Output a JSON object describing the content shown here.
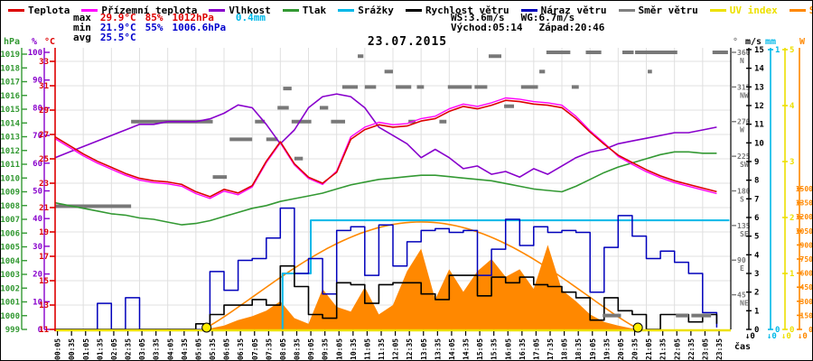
{
  "title": "23.07.2015",
  "legend": {
    "items": [
      {
        "label": "Teplota",
        "color": "#dd0000",
        "text_color": "#000000"
      },
      {
        "label": "Přízemní teplota",
        "color": "#ff00ff",
        "text_color": "#000000"
      },
      {
        "label": "Vlhkost",
        "color": "#8800cc",
        "text_color": "#000000"
      },
      {
        "label": "Tlak",
        "color": "#339933",
        "text_color": "#000000"
      },
      {
        "label": "Srážky",
        "color": "#00b8e8",
        "text_color": "#000000"
      },
      {
        "label": "Rychlost větru",
        "color": "#000000",
        "text_color": "#000000"
      },
      {
        "label": "Náraz větru",
        "color": "#0000bb",
        "text_color": "#000000"
      },
      {
        "label": "Směr větru",
        "color": "#808080",
        "text_color": "#000000"
      },
      {
        "label": "UV index",
        "color": "#ede000",
        "text_color": "#ede000"
      },
      {
        "label": "Solar",
        "color": "#ff8800",
        "text_color": "#ff8800"
      }
    ]
  },
  "stats": {
    "max_label": "max",
    "max_temp": "29.9°C",
    "max_hum": "85%",
    "max_press": "1012hPa",
    "rain": "0.4mm",
    "min_label": "min",
    "min_temp": "21.9°C",
    "min_hum": "55%",
    "min_press": "1006.6hPa",
    "avg_label": "avg",
    "avg_temp": "25.5°C",
    "ws": "WS:3.6m/s",
    "wg": "WG:6.7m/s",
    "sunrise": "Východ:05:14",
    "sunset": "Západ:20:46",
    "max_color": "#dd0000",
    "min_color": "#0000cc",
    "rain_color": "#00b8e8"
  },
  "footer": {
    "xlabel": "čas"
  },
  "chart_data": {
    "type": "line",
    "title": "23.07.2015",
    "x_unit": "hours",
    "x_range": [
      0,
      24
    ],
    "time_tick_labels": [
      "00:05",
      "00:35",
      "01:05",
      "01:35",
      "02:05",
      "02:35",
      "03:05",
      "03:35",
      "04:05",
      "04:35",
      "05:05",
      "05:35",
      "06:05",
      "06:35",
      "07:05",
      "07:35",
      "08:05",
      "08:35",
      "09:05",
      "09:35",
      "10:05",
      "10:35",
      "11:05",
      "11:35",
      "12:05",
      "12:35",
      "13:05",
      "13:35",
      "14:05",
      "14:35",
      "15:05",
      "15:35",
      "16:05",
      "16:35",
      "17:05",
      "17:35",
      "18:05",
      "18:35",
      "19:05",
      "19:35",
      "20:05",
      "20:35",
      "21:05",
      "21:35",
      "22:05",
      "22:35",
      "23:05",
      "23:35"
    ],
    "sample_step_h": 0.5,
    "series": [
      {
        "name": "Teplota",
        "unit": "°C",
        "axis": "temp",
        "color": "#dd0000",
        "values": [
          26.8,
          26.1,
          25.4,
          24.8,
          24.3,
          23.8,
          23.4,
          23.2,
          23.1,
          22.9,
          22.3,
          21.9,
          22.5,
          22.2,
          22.8,
          24.8,
          26.4,
          24.6,
          23.5,
          23.0,
          23.9,
          26.6,
          27.4,
          27.8,
          27.6,
          27.7,
          28.1,
          28.3,
          28.9,
          29.3,
          29.1,
          29.4,
          29.8,
          29.7,
          29.5,
          29.4,
          29.2,
          28.3,
          27.2,
          26.2,
          25.3,
          24.7,
          24.1,
          23.6,
          23.2,
          22.9,
          22.6,
          22.3
        ]
      },
      {
        "name": "Přízemní teplota",
        "unit": "°C",
        "axis": "temp",
        "color": "#ff00ff",
        "values": [
          26.65,
          25.95,
          25.25,
          24.65,
          24.15,
          23.65,
          23.25,
          23.05,
          22.95,
          22.75,
          22.15,
          21.75,
          22.35,
          22.05,
          22.7,
          24.7,
          26.3,
          24.5,
          23.4,
          22.9,
          24.0,
          26.8,
          27.6,
          28.0,
          27.8,
          27.9,
          28.3,
          28.5,
          29.1,
          29.5,
          29.3,
          29.6,
          30.0,
          29.9,
          29.7,
          29.6,
          29.4,
          28.5,
          27.3,
          26.3,
          25.2,
          24.55,
          23.95,
          23.45,
          23.05,
          22.75,
          22.45,
          22.15
        ]
      },
      {
        "name": "Vlhkost",
        "unit": "%",
        "axis": "hum",
        "color": "#8800cc",
        "values": [
          62,
          64,
          66,
          68,
          70,
          72,
          74,
          74,
          75,
          75,
          75,
          76,
          78,
          81,
          80,
          74,
          67,
          72,
          80,
          84,
          85,
          84,
          80,
          73,
          70,
          67,
          62,
          65,
          62,
          58,
          59,
          56,
          57,
          55,
          58,
          56,
          59,
          62,
          64,
          65,
          67,
          68,
          69,
          70,
          71,
          71,
          72,
          73
        ]
      },
      {
        "name": "Tlak",
        "unit": "hPa",
        "axis": "press",
        "color": "#339933",
        "values": [
          1008.2,
          1008.0,
          1007.8,
          1007.6,
          1007.4,
          1007.3,
          1007.1,
          1007.0,
          1006.8,
          1006.6,
          1006.7,
          1006.9,
          1007.2,
          1007.5,
          1007.8,
          1008.0,
          1008.3,
          1008.5,
          1008.7,
          1008.9,
          1009.2,
          1009.5,
          1009.7,
          1009.9,
          1010.0,
          1010.1,
          1010.2,
          1010.2,
          1010.1,
          1010.0,
          1009.9,
          1009.8,
          1009.6,
          1009.4,
          1009.2,
          1009.1,
          1009.0,
          1009.4,
          1009.9,
          1010.4,
          1010.8,
          1011.1,
          1011.4,
          1011.7,
          1011.9,
          1011.9,
          1011.8,
          1011.8
        ]
      },
      {
        "name": "Rychlost větru",
        "unit": "m/s",
        "axis": "wind",
        "color": "#000000",
        "step": true,
        "values": [
          0,
          0,
          0,
          0,
          0,
          0,
          0,
          0,
          0,
          0,
          0.3,
          0.8,
          1.3,
          1.3,
          1.6,
          1.3,
          3.4,
          2.3,
          0.8,
          0.6,
          2.5,
          2.4,
          1.4,
          2.4,
          2.5,
          2.5,
          1.9,
          1.6,
          2.9,
          2.9,
          1.8,
          2.8,
          2.5,
          2.8,
          2.4,
          2.3,
          2.0,
          1.7,
          0.5,
          1.7,
          1.0,
          0.8,
          0.0,
          0.8,
          0.8,
          0.4,
          0.8,
          0.3
        ]
      },
      {
        "name": "Náraz větru",
        "unit": "m/s",
        "axis": "wind",
        "color": "#0000bb",
        "step": true,
        "values": [
          0,
          0,
          0,
          1.4,
          0,
          1.7,
          0,
          0,
          0,
          0,
          0,
          3.1,
          2.1,
          3.7,
          3.8,
          4.9,
          6.5,
          3.0,
          3.8,
          1.9,
          5.3,
          5.5,
          2.9,
          5.6,
          3.4,
          4.7,
          5.3,
          5.4,
          5.2,
          5.3,
          2.9,
          4.3,
          5.9,
          4.5,
          5.5,
          5.2,
          5.3,
          5.2,
          2.0,
          4.4,
          6.1,
          5.0,
          3.8,
          4.2,
          3.6,
          3.0,
          0.9,
          0.1
        ]
      },
      {
        "name": "Solar",
        "unit": "W",
        "axis": "solar",
        "color": "#ff8800",
        "fill": true,
        "values": [
          0,
          0,
          0,
          0,
          0,
          0,
          0,
          0,
          0,
          0,
          0,
          10,
          40,
          100,
          140,
          200,
          300,
          120,
          60,
          430,
          240,
          190,
          450,
          160,
          260,
          620,
          860,
          320,
          640,
          400,
          620,
          750,
          560,
          640,
          430,
          900,
          420,
          300,
          160,
          80,
          40,
          10,
          0,
          0,
          0,
          0,
          0,
          0
        ]
      }
    ],
    "uv_index": {
      "unit": "UV",
      "color": "#ede000",
      "constant_value": 0
    },
    "solar_theoretical": {
      "color": "#ff8800",
      "sunrise_h": 5.23,
      "sunset_h": 20.77,
      "peak_w": 1145
    },
    "precip_cumulative_mm": {
      "color": "#00b8e8",
      "steps": [
        [
          8.08,
          0
        ],
        [
          8.08,
          0.2
        ],
        [
          9.08,
          0.2
        ],
        [
          9.08,
          0.39
        ],
        [
          23.95,
          0.39
        ]
      ]
    },
    "wind_direction_segments": {
      "color": "#787878",
      "unit": "deg",
      "segments": [
        [
          0.0,
          2.7,
          160
        ],
        [
          2.7,
          5.6,
          270
        ],
        [
          5.6,
          6.1,
          198
        ],
        [
          6.2,
          7.0,
          247
        ],
        [
          7.1,
          7.45,
          270
        ],
        [
          7.5,
          7.9,
          247
        ],
        [
          7.9,
          8.3,
          288
        ],
        [
          8.1,
          8.4,
          313
        ],
        [
          8.4,
          9.1,
          270
        ],
        [
          8.5,
          8.8,
          222
        ],
        [
          9.4,
          9.7,
          288
        ],
        [
          9.8,
          10.3,
          270
        ],
        [
          10.2,
          10.75,
          315
        ],
        [
          10.75,
          10.95,
          355
        ],
        [
          11.0,
          11.4,
          315
        ],
        [
          11.7,
          12.0,
          335
        ],
        [
          12.1,
          12.65,
          315
        ],
        [
          12.55,
          12.8,
          270
        ],
        [
          12.85,
          13.1,
          315
        ],
        [
          13.65,
          13.9,
          270
        ],
        [
          13.95,
          14.8,
          315
        ],
        [
          14.9,
          15.35,
          315
        ],
        [
          15.4,
          15.85,
          355
        ],
        [
          15.95,
          16.3,
          290
        ],
        [
          16.55,
          17.15,
          315
        ],
        [
          17.2,
          17.4,
          335
        ],
        [
          17.45,
          18.3,
          360
        ],
        [
          18.35,
          18.6,
          315
        ],
        [
          18.85,
          19.4,
          360
        ],
        [
          19.45,
          20.1,
          18
        ],
        [
          20.15,
          20.55,
          360
        ],
        [
          20.6,
          22.1,
          360
        ],
        [
          21.05,
          21.2,
          335
        ],
        [
          22.05,
          22.5,
          18
        ],
        [
          22.6,
          23.3,
          18
        ],
        [
          23.35,
          23.9,
          360
        ]
      ]
    },
    "sun_markers_h": [
      5.38,
      20.7
    ],
    "axes": {
      "temp": {
        "header": "°C",
        "color": "#dd0000",
        "min": 11,
        "max": 33,
        "tick_step": 2
      },
      "hum": {
        "header": "%",
        "color": "#8800cc",
        "min": 0,
        "max": 100,
        "tick_step": 10
      },
      "press": {
        "header": "hPa",
        "color": "#339933",
        "min": 999,
        "max": 1019,
        "tick_step": 1
      },
      "wind": {
        "header": "m/s",
        "color": "#000000",
        "min": 0,
        "max": 15,
        "tick_step": 1
      },
      "precip": {
        "header": "mm",
        "color": "#00b8e8",
        "min": 0,
        "max": 1,
        "ticks": [
          0,
          1
        ]
      },
      "uv": {
        "header": "UV",
        "color": "#ede000",
        "min": 0,
        "max": 5,
        "tick_step": 1
      },
      "solar": {
        "header": "W",
        "color": "#ff8800",
        "min": 0,
        "max": 1500,
        "tick_step": 150
      },
      "dir": {
        "header": "°",
        "color": "#787878",
        "ticks": [
          {
            "deg": 360,
            "compass": "N"
          },
          {
            "deg": 315,
            "compass": "NW"
          },
          {
            "deg": 270,
            "compass": "W"
          },
          {
            "deg": 225,
            "compass": "SW"
          },
          {
            "deg": 180,
            "compass": "S"
          },
          {
            "deg": 135,
            "compass": "SE"
          },
          {
            "deg": 90,
            "compass": "E"
          },
          {
            "deg": 45,
            "compass": "NE"
          }
        ]
      }
    },
    "zero_arrow_labels": [
      {
        "text": "↓0",
        "color": "#000000"
      },
      {
        "text": "↓0",
        "color": "#00b8e8"
      },
      {
        "text": "↓0",
        "color": "#ede000"
      },
      {
        "text": "↓0",
        "color": "#ff8800"
      }
    ]
  }
}
